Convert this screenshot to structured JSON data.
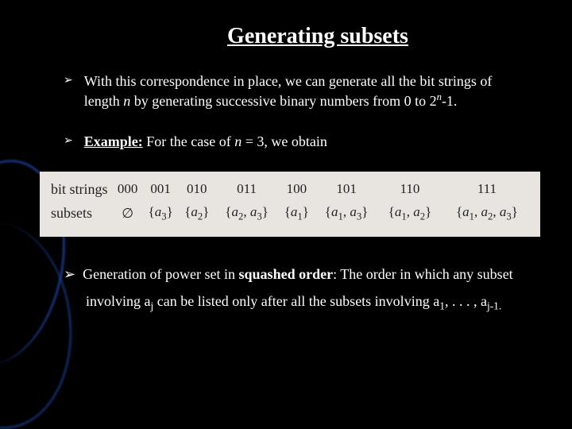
{
  "title": "Generating subsets",
  "bullets": {
    "b1a": "With this correspondence in place, we can generate all the bit strings of length ",
    "b1n": "n",
    "b1b": " by generating successive binary numbers from 0 to 2",
    "b1exp": "n",
    "b1c": "-1.",
    "b2a": "Example:",
    "b2b": " For the case of ",
    "b2n": "n",
    "b2c": " = 3, we obtain"
  },
  "table": {
    "row_labels": [
      "bit strings",
      "subsets"
    ],
    "bitstrings": [
      "000",
      "001",
      "010",
      "011",
      "100",
      "101",
      "110",
      "111"
    ],
    "subsets_plain": [
      "∅",
      "{a3}",
      "{a2}",
      "{a2, a3}",
      "{a1}",
      "{a1, a3}",
      "{a1, a2}",
      "{a1, a2, a3}"
    ]
  },
  "lower": {
    "marker": "➢",
    "t1": "Generation of power set in ",
    "t2": "squashed order",
    "t3": ": The order in which any subset involving a",
    "t3sub": "j",
    "t4": " can be listed only after all the subsets involving a",
    "t4sub1": "1",
    "t5": ", . . . , a",
    "t5sub": "j-1.",
    "colors": {
      "background": "#000000",
      "text": "#ffffff",
      "table_bg": "#e8e5e0",
      "table_text": "#222222",
      "accent": "#1a3a8a"
    }
  }
}
